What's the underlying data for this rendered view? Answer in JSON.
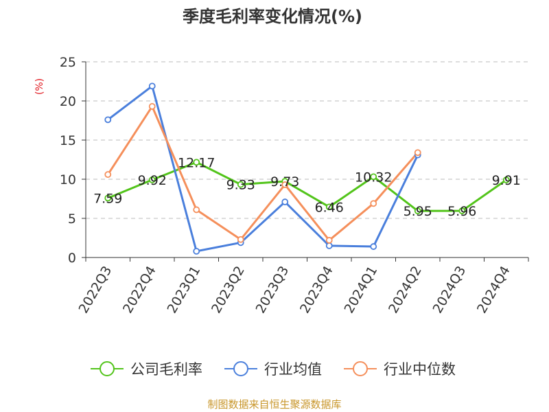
{
  "chart_data": {
    "type": "line",
    "title": "季度毛利率变化情况(%)",
    "unit_label": "(%)",
    "categories": [
      "2022Q3",
      "2022Q4",
      "2023Q1",
      "2023Q2",
      "2023Q3",
      "2023Q4",
      "2024Q1",
      "2024Q2",
      "2024Q3",
      "2024Q4"
    ],
    "ylim": [
      0,
      25
    ],
    "yticks": [
      0,
      5,
      10,
      15,
      20,
      25
    ],
    "grid": true,
    "legend_position": "bottom",
    "series": [
      {
        "name": "公司毛利率",
        "color": "#52c41a",
        "values": [
          7.59,
          9.92,
          12.17,
          9.33,
          9.73,
          6.46,
          10.32,
          5.95,
          5.96,
          9.91
        ],
        "labels": [
          "7.59",
          "9.92",
          "12.17",
          "9.33",
          "9.73",
          "6.46",
          "10.32",
          "5.95",
          "5.96",
          "9.91"
        ]
      },
      {
        "name": "行业均值",
        "color": "#4a7fdc",
        "values": [
          17.6,
          21.9,
          0.8,
          1.9,
          7.1,
          1.5,
          1.4,
          13.1,
          null,
          null
        ]
      },
      {
        "name": "行业中位数",
        "color": "#f58f5b",
        "values": [
          10.6,
          19.3,
          6.1,
          2.3,
          9.3,
          2.2,
          6.9,
          13.4,
          null,
          null
        ]
      }
    ]
  },
  "footer": {
    "source": "制图数据来自恒生聚源数据库"
  }
}
